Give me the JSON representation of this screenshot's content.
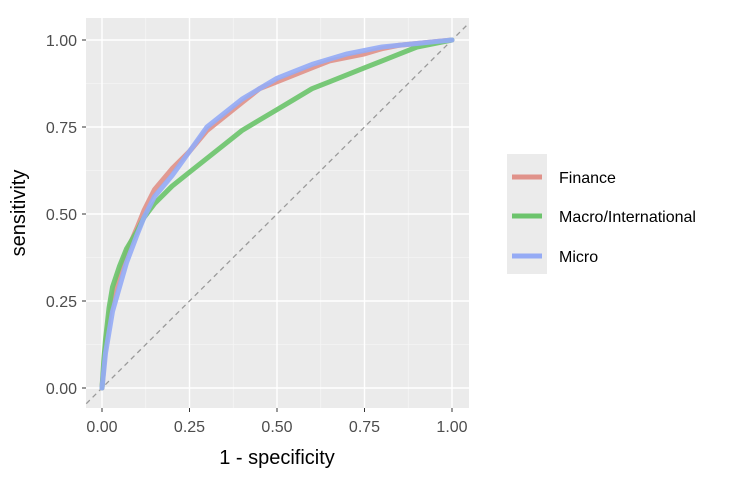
{
  "chart_data": {
    "type": "line",
    "xlabel": "1 - specificity",
    "ylabel": "sensitivity",
    "xlim": [
      0,
      1
    ],
    "ylim": [
      0,
      1
    ],
    "x_ticks": [
      "0.00",
      "0.25",
      "0.50",
      "0.75",
      "1.00"
    ],
    "y_ticks": [
      "0.00",
      "0.25",
      "0.50",
      "0.75",
      "1.00"
    ],
    "grid": true,
    "legend_position": "right",
    "reference_line": {
      "x": [
        0,
        1
      ],
      "y": [
        0,
        1
      ],
      "style": "dashed",
      "color": "#9a9a9a"
    },
    "series": [
      {
        "name": "Finance",
        "color": "#e0928a",
        "x": [
          0.0,
          0.005,
          0.01,
          0.02,
          0.03,
          0.05,
          0.07,
          0.1,
          0.12,
          0.15,
          0.2,
          0.25,
          0.3,
          0.35,
          0.4,
          0.45,
          0.5,
          0.55,
          0.6,
          0.65,
          0.7,
          0.75,
          0.8,
          0.85,
          0.9,
          0.95,
          1.0
        ],
        "y": [
          0.0,
          0.06,
          0.12,
          0.2,
          0.26,
          0.33,
          0.39,
          0.46,
          0.51,
          0.57,
          0.63,
          0.68,
          0.74,
          0.78,
          0.82,
          0.86,
          0.88,
          0.9,
          0.92,
          0.94,
          0.95,
          0.96,
          0.975,
          0.985,
          0.99,
          0.995,
          1.0
        ]
      },
      {
        "name": "Macro/International",
        "color": "#6cc46c",
        "x": [
          0.0,
          0.005,
          0.01,
          0.02,
          0.03,
          0.05,
          0.07,
          0.1,
          0.12,
          0.15,
          0.2,
          0.25,
          0.3,
          0.35,
          0.4,
          0.45,
          0.5,
          0.55,
          0.6,
          0.65,
          0.7,
          0.75,
          0.8,
          0.85,
          0.9,
          0.95,
          1.0
        ],
        "y": [
          0.0,
          0.08,
          0.14,
          0.23,
          0.29,
          0.35,
          0.4,
          0.45,
          0.49,
          0.53,
          0.58,
          0.62,
          0.66,
          0.7,
          0.74,
          0.77,
          0.8,
          0.83,
          0.86,
          0.88,
          0.9,
          0.92,
          0.94,
          0.96,
          0.98,
          0.99,
          1.0
        ]
      },
      {
        "name": "Micro",
        "color": "#95abf5",
        "x": [
          0.0,
          0.005,
          0.01,
          0.02,
          0.03,
          0.05,
          0.07,
          0.1,
          0.12,
          0.15,
          0.2,
          0.25,
          0.3,
          0.35,
          0.4,
          0.45,
          0.5,
          0.55,
          0.6,
          0.65,
          0.7,
          0.75,
          0.8,
          0.85,
          0.9,
          0.95,
          1.0
        ],
        "y": [
          0.0,
          0.05,
          0.1,
          0.16,
          0.22,
          0.29,
          0.36,
          0.44,
          0.49,
          0.55,
          0.61,
          0.68,
          0.75,
          0.79,
          0.83,
          0.86,
          0.89,
          0.91,
          0.93,
          0.945,
          0.96,
          0.97,
          0.98,
          0.985,
          0.99,
          0.995,
          1.0
        ]
      }
    ]
  }
}
